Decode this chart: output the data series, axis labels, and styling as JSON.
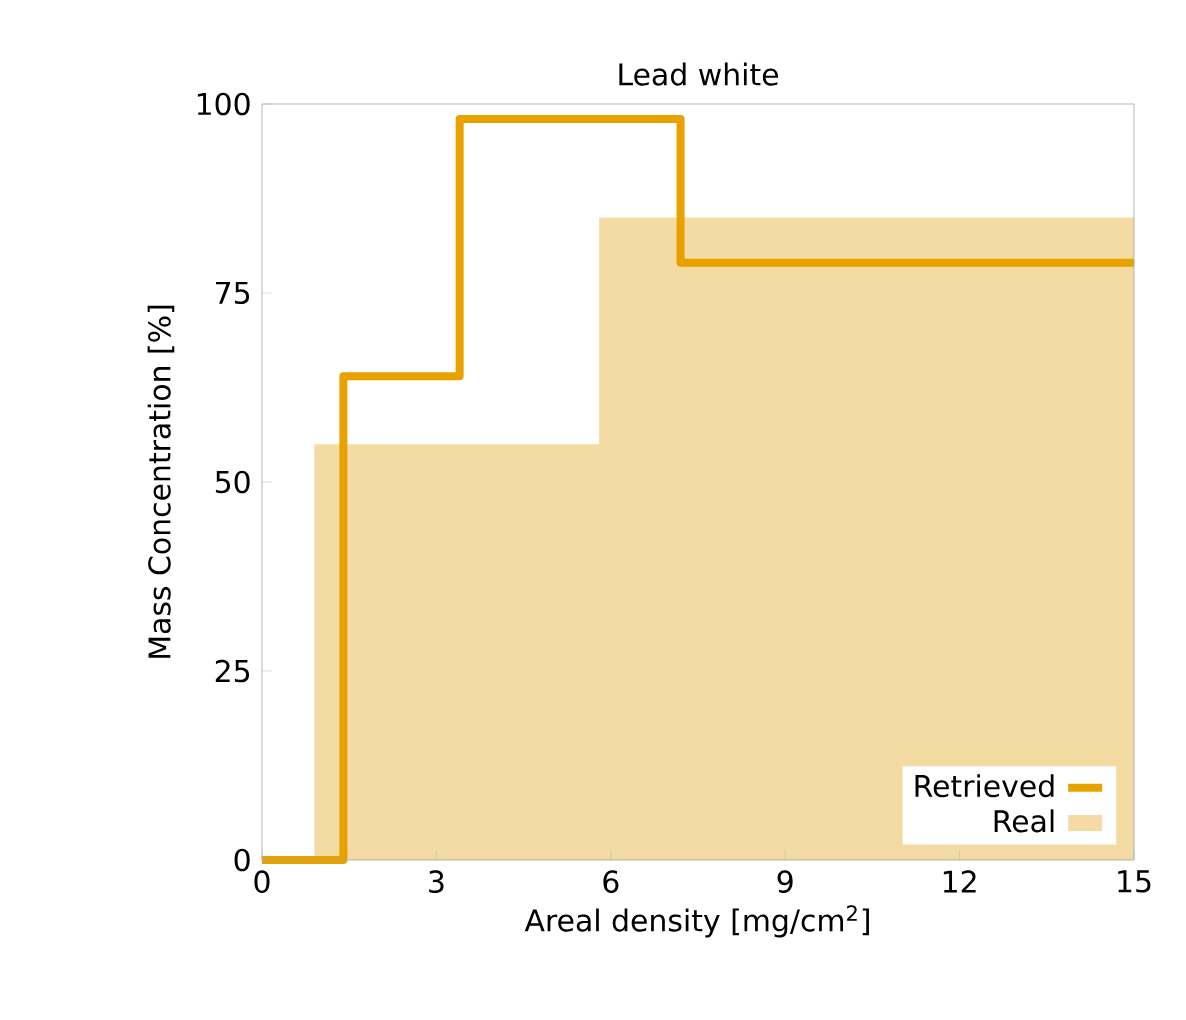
{
  "chart_data": {
    "type": "step",
    "title": "Lead white",
    "xlabel": "Areal density [mg/cm$^{2}$]",
    "ylabel": "Mass Concentration [%]",
    "xlim": [
      0,
      15
    ],
    "xticks": [
      0,
      3,
      6,
      9,
      12,
      15
    ],
    "ylim": [
      0,
      100
    ],
    "yticks": [
      0,
      25,
      50,
      75,
      100
    ],
    "legend": "bottom right",
    "series": [
      {
        "name": "Retrieved",
        "color": "#e8a200",
        "x": [
          0,
          1.4,
          3.4,
          7.2,
          15
        ],
        "values": [
          0,
          64,
          98,
          79,
          79
        ]
      },
      {
        "name": "Real",
        "type": "area",
        "color": "#f4dba3",
        "x": [
          0.9,
          5.8,
          15
        ],
        "values": [
          55,
          85,
          85
        ]
      }
    ]
  }
}
